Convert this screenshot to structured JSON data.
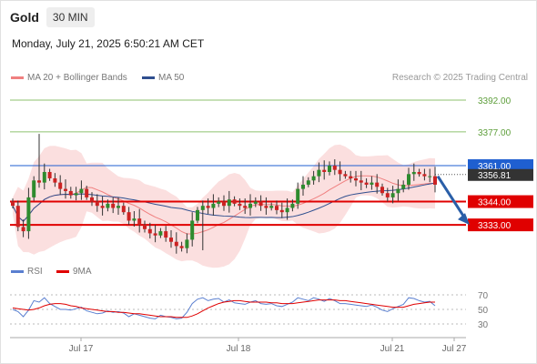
{
  "header": {
    "symbol": "Gold",
    "timeframe": "30 MIN",
    "datetime": "Monday, July 21, 2025 6:50:21 AM CET"
  },
  "legend": {
    "ma_label": "MA 20 + Bollinger Bands",
    "ma50_label": "MA 50",
    "rsi_label": "RSI",
    "rsi_ma_label": "9MA",
    "copyright": "Research © 2025 Trading Central"
  },
  "colors": {
    "bollinger": "#f4a3a3",
    "ma20": "#f08080",
    "ma50": "#2f4f8f",
    "resistance_minor": "#8dc26f",
    "level_red": "#e00000",
    "current_blue": "#1f5fd0",
    "rsi": "#5a7fd0",
    "rsi_ma": "#e00000",
    "candle_up": "#2e8b2e",
    "candle_down": "#cc2222"
  },
  "chart_data": [
    {
      "type": "candlestick",
      "ylim": [
        3318,
        3398
      ],
      "x_ticks": [
        "Jul 17",
        "Jul 18",
        "Jul 21",
        "Jul 27"
      ],
      "levels": [
        {
          "label": "3392.00",
          "value": 3392.0,
          "role": "resistance",
          "color": "#8dc26f"
        },
        {
          "label": "3377.00",
          "value": 3377.0,
          "role": "resistance",
          "color": "#8dc26f"
        },
        {
          "label": "3361.00",
          "value": 3361.0,
          "role": "pivot",
          "color": "#1f5fd0"
        },
        {
          "label": "3344.00",
          "value": 3344.0,
          "role": "target",
          "color": "#e00000"
        },
        {
          "label": "3333.00",
          "value": 3333.0,
          "role": "target",
          "color": "#e00000"
        }
      ],
      "last_price": "3356.81",
      "closes": [
        3342,
        3332,
        3330,
        3346,
        3354,
        3353,
        3358,
        3355,
        3353,
        3350,
        3349,
        3347,
        3348,
        3350,
        3346,
        3344,
        3342,
        3341,
        3343,
        3341,
        3342,
        3339,
        3335,
        3336,
        3333,
        3331,
        3329,
        3328,
        3330,
        3327,
        3325,
        3323,
        3322,
        3326,
        3335,
        3340,
        3342,
        3341,
        3343,
        3344,
        3342,
        3345,
        3343,
        3342,
        3341,
        3343,
        3344,
        3342,
        3341,
        3342,
        3340,
        3339,
        3341,
        3343,
        3350,
        3352,
        3354,
        3356,
        3359,
        3358,
        3361,
        3359,
        3357,
        3356,
        3355,
        3354,
        3353,
        3352,
        3353,
        3351,
        3348,
        3346,
        3348,
        3350,
        3352,
        3357,
        3358,
        3357,
        3356,
        3356,
        3352
      ]
    },
    {
      "type": "line",
      "title": "RSI",
      "ylim": [
        20,
        80
      ],
      "y_ticks": [
        "70",
        "50",
        "30"
      ],
      "series": [
        {
          "name": "RSI",
          "values": [
            50,
            47,
            40,
            49,
            62,
            60,
            66,
            58,
            54,
            50,
            50,
            49,
            51,
            53,
            48,
            46,
            44,
            45,
            48,
            46,
            47,
            45,
            40,
            44,
            42,
            40,
            38,
            37,
            42,
            40,
            39,
            37,
            38,
            46,
            58,
            64,
            66,
            62,
            64,
            65,
            60,
            63,
            59,
            58,
            57,
            60,
            62,
            58,
            57,
            58,
            55,
            54,
            57,
            60,
            66,
            64,
            62,
            66,
            64,
            61,
            65,
            62,
            58,
            58,
            57,
            56,
            55,
            54,
            56,
            53,
            49,
            47,
            51,
            54,
            57,
            66,
            65,
            62,
            60,
            61,
            55
          ]
        },
        {
          "name": "9MA",
          "values": [
            52,
            51,
            50,
            49,
            50,
            52,
            55,
            57,
            58,
            58,
            57,
            55,
            54,
            52,
            51,
            50,
            49,
            48,
            47,
            47,
            46,
            46,
            45,
            44,
            44,
            43,
            42,
            41,
            40,
            40,
            40,
            39,
            39,
            39,
            41,
            44,
            48,
            52,
            55,
            58,
            60,
            61,
            62,
            62,
            61,
            60,
            60,
            60,
            60,
            59,
            59,
            58,
            58,
            58,
            59,
            60,
            61,
            62,
            63,
            63,
            63,
            63,
            62,
            62,
            61,
            60,
            59,
            58,
            57,
            56,
            55,
            54,
            53,
            53,
            53,
            55,
            57,
            58,
            59,
            60,
            60
          ]
        }
      ]
    }
  ]
}
